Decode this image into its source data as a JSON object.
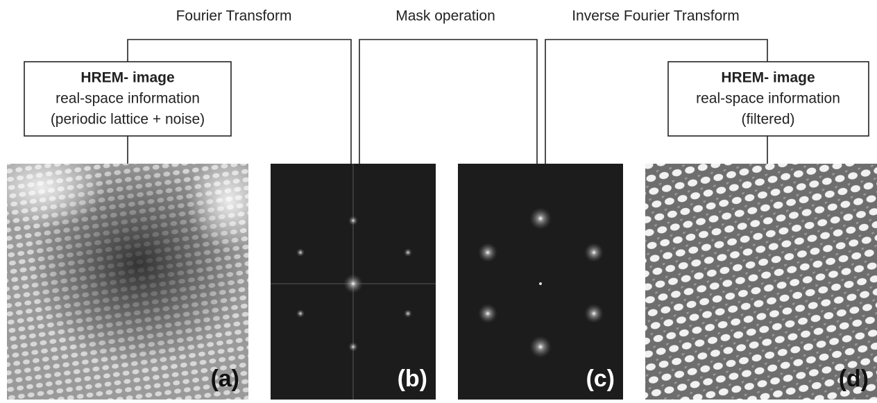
{
  "steps": [
    "Fourier Transform",
    "Mask operation",
    "Inverse Fourier Transform"
  ],
  "boxes": [
    {
      "title": "HREM- image",
      "lines": [
        "real-space information",
        "(periodic lattice + noise)"
      ]
    },
    {
      "title": "HREM- image",
      "lines": [
        "real-space information",
        "(filtered)"
      ]
    }
  ],
  "panels": [
    "(a)",
    "(b)",
    "(c)",
    "(d)"
  ]
}
